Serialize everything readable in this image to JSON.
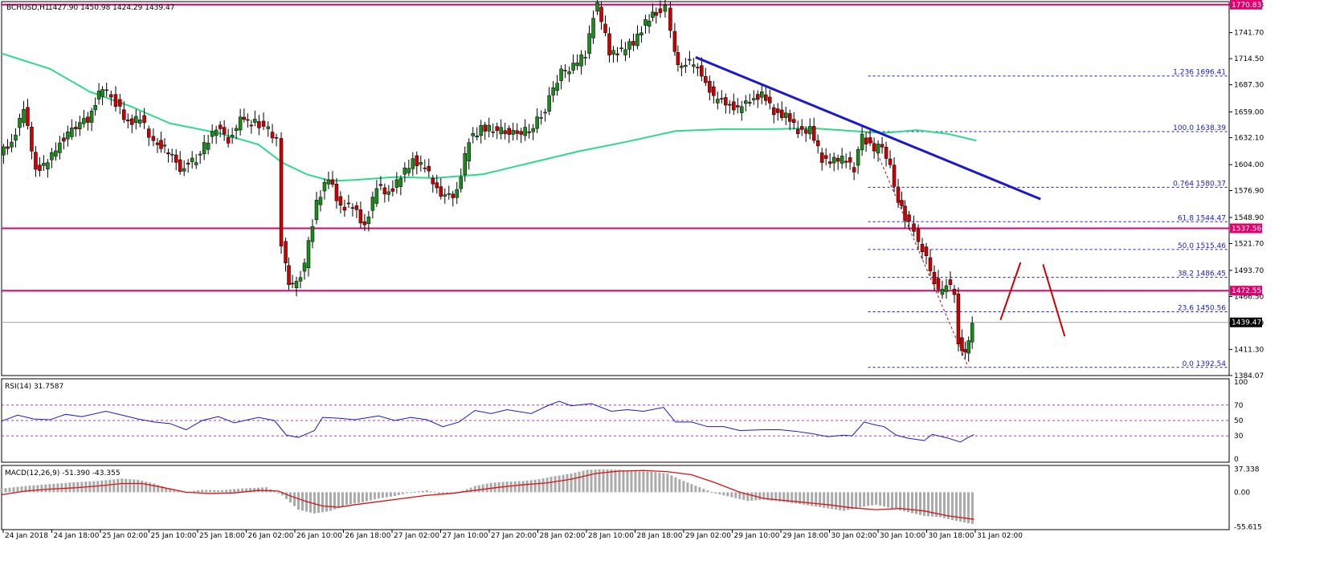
{
  "header": {
    "symbol": "BCHUSD,H1",
    "ohlc": "1427.90 1450.98 1424.29 1439.47"
  },
  "colors": {
    "bull": "#1a8a1a",
    "bear": "#cc0000",
    "ma": "#2fd98c",
    "trendline": "#1a1acc",
    "level": "#e0006e",
    "fib": "#1a1acc",
    "rsi": "#1a1acc",
    "macd_signal": "#dd1111",
    "macd_hist": "#aaaaaa",
    "price_badge_bg": "#000000"
  },
  "chart_data": [
    {
      "type": "candlestick",
      "symbol": "BCHUSD",
      "timeframe": "H1",
      "ylim": [
        1384.0,
        1774.0
      ],
      "y_ticks": [
        "1384.07",
        "1411.30",
        "1438.79",
        "1466.50",
        "1493.70",
        "1521.70",
        "1548.90",
        "1576.90",
        "1604.00",
        "1632.10",
        "1659.00",
        "1687.30",
        "1714.50",
        "1741.70",
        "1770.83"
      ],
      "x_ticks": [
        "24 Jan 2018",
        "24 Jan 18:00",
        "25 Jan 02:00",
        "25 Jan 10:00",
        "25 Jan 18:00",
        "26 Jan 02:00",
        "26 Jan 10:00",
        "26 Jan 18:00",
        "27 Jan 02:00",
        "27 Jan 10:00",
        "27 Jan 20:00",
        "28 Jan 02:00",
        "28 Jan 10:00",
        "28 Jan 18:00",
        "29 Jan 02:00",
        "29 Jan 10:00",
        "29 Jan 18:00",
        "30 Jan 02:00",
        "30 Jan 10:00",
        "30 Jan 18:00",
        "31 Jan 02:00"
      ],
      "candle_close_path": [
        [
          0,
          1614
        ],
        [
          15,
          1628
        ],
        [
          30,
          1661
        ],
        [
          45,
          1600
        ],
        [
          60,
          1605
        ],
        [
          75,
          1628
        ],
        [
          95,
          1645
        ],
        [
          110,
          1652
        ],
        [
          128,
          1685
        ],
        [
          145,
          1668
        ],
        [
          160,
          1648
        ],
        [
          175,
          1652
        ],
        [
          192,
          1628
        ],
        [
          210,
          1618
        ],
        [
          225,
          1600
        ],
        [
          245,
          1610
        ],
        [
          260,
          1630
        ],
        [
          270,
          1644
        ],
        [
          285,
          1630
        ],
        [
          300,
          1650
        ],
        [
          318,
          1648
        ],
        [
          335,
          1641
        ],
        [
          345,
          1628
        ],
        [
          352,
          1520
        ],
        [
          360,
          1478
        ],
        [
          370,
          1480
        ],
        [
          380,
          1500
        ],
        [
          395,
          1565
        ],
        [
          410,
          1590
        ],
        [
          425,
          1560
        ],
        [
          440,
          1560
        ],
        [
          455,
          1540
        ],
        [
          470,
          1580
        ],
        [
          485,
          1575
        ],
        [
          500,
          1590
        ],
        [
          515,
          1610
        ],
        [
          530,
          1600
        ],
        [
          545,
          1580
        ],
        [
          555,
          1570
        ],
        [
          570,
          1575
        ],
        [
          585,
          1630
        ],
        [
          600,
          1642
        ],
        [
          620,
          1640
        ],
        [
          640,
          1636
        ],
        [
          660,
          1640
        ],
        [
          680,
          1660
        ],
        [
          690,
          1685
        ],
        [
          700,
          1700
        ],
        [
          715,
          1706
        ],
        [
          730,
          1720
        ],
        [
          740,
          1760
        ],
        [
          745,
          1770
        ],
        [
          760,
          1722
        ],
        [
          775,
          1722
        ],
        [
          790,
          1732
        ],
        [
          805,
          1752
        ],
        [
          818,
          1763
        ],
        [
          830,
          1769
        ],
        [
          837,
          1742
        ],
        [
          845,
          1708
        ],
        [
          860,
          1710
        ],
        [
          875,
          1700
        ],
        [
          890,
          1672
        ],
        [
          905,
          1670
        ],
        [
          920,
          1660
        ],
        [
          935,
          1672
        ],
        [
          950,
          1676
        ],
        [
          965,
          1660
        ],
        [
          980,
          1654
        ],
        [
          995,
          1640
        ],
        [
          1010,
          1640
        ],
        [
          1025,
          1610
        ],
        [
          1040,
          1608
        ],
        [
          1055,
          1610
        ],
        [
          1065,
          1600
        ],
        [
          1075,
          1635
        ],
        [
          1090,
          1618
        ],
        [
          1100,
          1625
        ],
        [
          1110,
          1600
        ],
        [
          1120,
          1566
        ],
        [
          1128,
          1548
        ],
        [
          1140,
          1535
        ],
        [
          1150,
          1515
        ],
        [
          1160,
          1495
        ],
        [
          1170,
          1470
        ],
        [
          1180,
          1480
        ],
        [
          1190,
          1470
        ],
        [
          1195,
          1420
        ],
        [
          1203,
          1407
        ],
        [
          1212,
          1439
        ]
      ],
      "candle_range": {
        "high": 1770.83,
        "low": 1392.54
      },
      "last_price": "1439.47",
      "series": [
        {
          "name": "",
          "kind": "moving-average",
          "points": [
            [
              0,
              1720
            ],
            [
              60,
              1704
            ],
            [
              110,
              1680
            ],
            [
              160,
              1665
            ],
            [
              210,
              1647
            ],
            [
              270,
              1637
            ],
            [
              320,
              1625
            ],
            [
              350,
              1606
            ],
            [
              380,
              1594
            ],
            [
              410,
              1587
            ],
            [
              440,
              1588
            ],
            [
              490,
              1591
            ],
            [
              540,
              1590
            ],
            [
              600,
              1594
            ],
            [
              660,
              1606
            ],
            [
              720,
              1618
            ],
            [
              780,
              1628
            ],
            [
              840,
              1639
            ],
            [
              900,
              1641
            ],
            [
              960,
              1641
            ],
            [
              1010,
              1642
            ],
            [
              1060,
              1639
            ],
            [
              1100,
              1637
            ],
            [
              1140,
              1640
            ],
            [
              1180,
              1636
            ],
            [
              1215,
              1629
            ]
          ]
        }
      ],
      "horizontal_levels": [
        {
          "value": 1770.83,
          "label": "1770.83"
        },
        {
          "value": 1537.56,
          "label": "1537.56"
        },
        {
          "value": 1472.55,
          "label": "1472.55"
        }
      ],
      "trendline": {
        "x1": 865,
        "y1": 1716,
        "x2": 1295,
        "y2": 1568
      },
      "fibonacci": {
        "x_start": 1080,
        "levels": [
          {
            "ratio": "1.236",
            "value": 1696.41
          },
          {
            "ratio": "100.0",
            "value": 1638.39
          },
          {
            "ratio": "0.764",
            "value": 1580.37
          },
          {
            "ratio": "61.8",
            "value": 1544.47
          },
          {
            "ratio": "50.0",
            "value": 1515.46
          },
          {
            "ratio": "38.2",
            "value": 1486.45
          },
          {
            "ratio": "23.6",
            "value": 1450.56
          },
          {
            "ratio": "0.0",
            "value": 1392.54
          }
        ],
        "top_extra": 1781.0
      },
      "annotation_arrows": [
        {
          "x1": 1245,
          "y1": 1442,
          "x2": 1270,
          "y2": 1502
        },
        {
          "x1": 1298,
          "y1": 1500,
          "x2": 1325,
          "y2": 1425
        }
      ],
      "hline_last": 1439.47
    },
    {
      "type": "line",
      "name": "RSI(14)",
      "label": "RSI(14) 31.7587",
      "ylim": [
        0,
        100
      ],
      "y_ticks": [
        "0",
        "30",
        "50",
        "70",
        "100"
      ],
      "levels": [
        30,
        50,
        70
      ],
      "points": [
        [
          0,
          49
        ],
        [
          20,
          57
        ],
        [
          40,
          52
        ],
        [
          60,
          51
        ],
        [
          80,
          58
        ],
        [
          100,
          55
        ],
        [
          130,
          62
        ],
        [
          150,
          57
        ],
        [
          170,
          52
        ],
        [
          190,
          48
        ],
        [
          210,
          46
        ],
        [
          230,
          38
        ],
        [
          250,
          50
        ],
        [
          270,
          55
        ],
        [
          290,
          47
        ],
        [
          320,
          54
        ],
        [
          340,
          50
        ],
        [
          355,
          31
        ],
        [
          370,
          28
        ],
        [
          390,
          37
        ],
        [
          400,
          54
        ],
        [
          420,
          53
        ],
        [
          440,
          51
        ],
        [
          470,
          56
        ],
        [
          490,
          50
        ],
        [
          510,
          54
        ],
        [
          530,
          51
        ],
        [
          550,
          42
        ],
        [
          570,
          48
        ],
        [
          590,
          63
        ],
        [
          610,
          59
        ],
        [
          630,
          64
        ],
        [
          660,
          59
        ],
        [
          680,
          69
        ],
        [
          695,
          75
        ],
        [
          710,
          69
        ],
        [
          735,
          72
        ],
        [
          760,
          62
        ],
        [
          780,
          64
        ],
        [
          800,
          62
        ],
        [
          825,
          67
        ],
        [
          840,
          48
        ],
        [
          860,
          48
        ],
        [
          880,
          42
        ],
        [
          900,
          42
        ],
        [
          920,
          37
        ],
        [
          950,
          38
        ],
        [
          970,
          38
        ],
        [
          990,
          36
        ],
        [
          1010,
          33
        ],
        [
          1030,
          29
        ],
        [
          1050,
          31
        ],
        [
          1060,
          30
        ],
        [
          1075,
          48
        ],
        [
          1090,
          44
        ],
        [
          1100,
          42
        ],
        [
          1115,
          31
        ],
        [
          1130,
          27
        ],
        [
          1150,
          24
        ],
        [
          1160,
          32
        ],
        [
          1180,
          27
        ],
        [
          1195,
          22
        ],
        [
          1203,
          27
        ],
        [
          1212,
          31.76
        ]
      ]
    },
    {
      "type": "bar+line",
      "name": "MACD(12,26,9)",
      "label": "MACD(12,26,9) -51.390 -43.355",
      "ylim": [
        -60.0,
        43.0
      ],
      "y_ticks": [
        "37.338",
        "0.00",
        "-55.615"
      ],
      "histogram": [
        [
          0,
          6
        ],
        [
          30,
          10
        ],
        [
          60,
          13
        ],
        [
          90,
          16
        ],
        [
          120,
          18
        ],
        [
          150,
          22
        ],
        [
          170,
          20
        ],
        [
          190,
          14
        ],
        [
          210,
          5
        ],
        [
          230,
          0
        ],
        [
          250,
          4
        ],
        [
          270,
          3
        ],
        [
          300,
          6
        ],
        [
          330,
          8
        ],
        [
          350,
          -5
        ],
        [
          370,
          -28
        ],
        [
          390,
          -34
        ],
        [
          410,
          -30
        ],
        [
          430,
          -20
        ],
        [
          450,
          -16
        ],
        [
          470,
          -10
        ],
        [
          490,
          -6
        ],
        [
          510,
          0
        ],
        [
          530,
          3
        ],
        [
          550,
          -4
        ],
        [
          570,
          0
        ],
        [
          590,
          10
        ],
        [
          610,
          15
        ],
        [
          630,
          17
        ],
        [
          650,
          18
        ],
        [
          670,
          21
        ],
        [
          690,
          26
        ],
        [
          710,
          30
        ],
        [
          730,
          36
        ],
        [
          750,
          37
        ],
        [
          770,
          36
        ],
        [
          790,
          34
        ],
        [
          810,
          33
        ],
        [
          830,
          30
        ],
        [
          850,
          18
        ],
        [
          870,
          8
        ],
        [
          890,
          -2
        ],
        [
          910,
          -8
        ],
        [
          930,
          -14
        ],
        [
          950,
          -12
        ],
        [
          970,
          -15
        ],
        [
          990,
          -18
        ],
        [
          1010,
          -22
        ],
        [
          1030,
          -26
        ],
        [
          1050,
          -30
        ],
        [
          1070,
          -24
        ],
        [
          1090,
          -20
        ],
        [
          1110,
          -26
        ],
        [
          1130,
          -32
        ],
        [
          1150,
          -38
        ],
        [
          1170,
          -40
        ],
        [
          1190,
          -46
        ],
        [
          1212,
          -51.39
        ]
      ],
      "signal": [
        [
          0,
          -4
        ],
        [
          30,
          2
        ],
        [
          60,
          5
        ],
        [
          90,
          7
        ],
        [
          120,
          10
        ],
        [
          150,
          14
        ],
        [
          175,
          14
        ],
        [
          200,
          8
        ],
        [
          230,
          0
        ],
        [
          260,
          -2
        ],
        [
          290,
          -1
        ],
        [
          320,
          3
        ],
        [
          345,
          2
        ],
        [
          360,
          -6
        ],
        [
          380,
          -15
        ],
        [
          400,
          -22
        ],
        [
          420,
          -24
        ],
        [
          440,
          -20
        ],
        [
          470,
          -15
        ],
        [
          500,
          -10
        ],
        [
          530,
          -5
        ],
        [
          560,
          -2
        ],
        [
          590,
          3
        ],
        [
          620,
          8
        ],
        [
          650,
          12
        ],
        [
          680,
          15
        ],
        [
          710,
          21
        ],
        [
          740,
          30
        ],
        [
          770,
          34
        ],
        [
          800,
          35
        ],
        [
          830,
          33
        ],
        [
          860,
          28
        ],
        [
          890,
          15
        ],
        [
          920,
          0
        ],
        [
          950,
          -10
        ],
        [
          990,
          -15
        ],
        [
          1030,
          -20
        ],
        [
          1060,
          -25
        ],
        [
          1090,
          -28
        ],
        [
          1120,
          -26
        ],
        [
          1150,
          -30
        ],
        [
          1180,
          -38
        ],
        [
          1212,
          -43.355
        ]
      ]
    }
  ]
}
